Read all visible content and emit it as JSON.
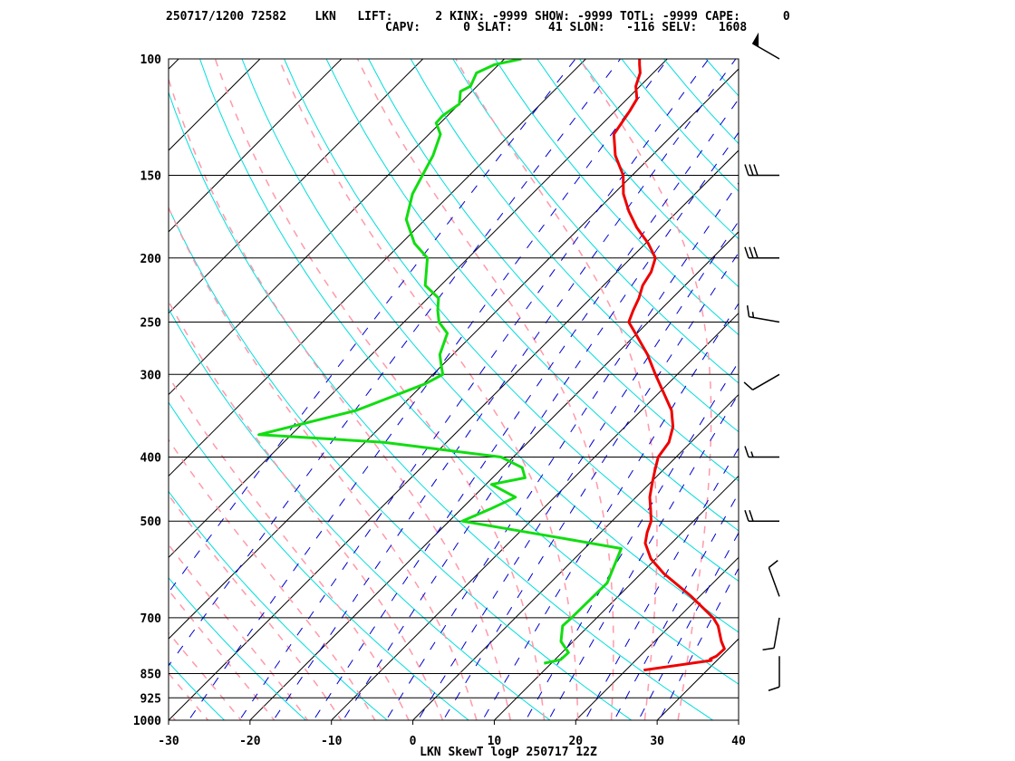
{
  "header": {
    "line1": "250717/1200 72582    LKN   LIFT:      2 KINX: -9999 SHOW: -9999 TOTL: -9999 CAPE:      0",
    "line2": "CAPV:      0 SLAT:     41 SLON:   -116 SELV:   1608"
  },
  "chart_data": {
    "type": "line",
    "title": "LKN SkewT logP 250717 12Z",
    "x_axis": {
      "ticks": [
        -30,
        -20,
        -10,
        0,
        10,
        20,
        30,
        40
      ],
      "range": [
        -30,
        40
      ]
    },
    "y_axis": {
      "scale": "log",
      "ticks": [
        100,
        150,
        200,
        250,
        300,
        400,
        500,
        700,
        850,
        925,
        1000
      ],
      "range": [
        1000,
        100
      ]
    },
    "series": [
      {
        "color": "#ee0000",
        "points": [
          [
            840,
            22.2
          ],
          [
            812,
            29.3
          ],
          [
            808,
            29.0
          ],
          [
            800,
            29.4
          ],
          [
            780,
            29.5
          ],
          [
            760,
            28.2
          ],
          [
            720,
            25.9
          ],
          [
            700,
            24.3
          ],
          [
            650,
            19.0
          ],
          [
            600,
            12.8
          ],
          [
            570,
            9.4
          ],
          [
            540,
            6.8
          ],
          [
            520,
            5.7
          ],
          [
            500,
            4.8
          ],
          [
            480,
            3.3
          ],
          [
            460,
            1.7
          ],
          [
            440,
            0.4
          ],
          [
            420,
            -0.9
          ],
          [
            400,
            -2.2
          ],
          [
            380,
            -2.7
          ],
          [
            360,
            -4.1
          ],
          [
            340,
            -6.3
          ],
          [
            300,
            -12.7
          ],
          [
            280,
            -16.1
          ],
          [
            260,
            -20.2
          ],
          [
            250,
            -22.4
          ],
          [
            240,
            -23.3
          ],
          [
            230,
            -24.1
          ],
          [
            220,
            -25.2
          ],
          [
            210,
            -25.8
          ],
          [
            200,
            -27.0
          ],
          [
            190,
            -29.7
          ],
          [
            180,
            -33.0
          ],
          [
            170,
            -36.0
          ],
          [
            160,
            -38.8
          ],
          [
            150,
            -41.1
          ],
          [
            140,
            -44.5
          ],
          [
            130,
            -47.3
          ],
          [
            120,
            -48.2
          ],
          [
            115,
            -48.8
          ],
          [
            110,
            -50.5
          ],
          [
            105,
            -51.6
          ],
          [
            102,
            -52.7
          ],
          [
            100,
            -53.4
          ]
        ]
      },
      {
        "color": "#11dd11",
        "points": [
          [
            820,
            9.1
          ],
          [
            810,
            10.7
          ],
          [
            790,
            10.8
          ],
          [
            760,
            8.5
          ],
          [
            720,
            6.8
          ],
          [
            700,
            6.9
          ],
          [
            620,
            7.0
          ],
          [
            550,
            4.5
          ],
          [
            530,
            -4.3
          ],
          [
            500,
            -18.4
          ],
          [
            480,
            -16.5
          ],
          [
            460,
            -14.8
          ],
          [
            440,
            -19.3
          ],
          [
            430,
            -16.0
          ],
          [
            415,
            -17.6
          ],
          [
            400,
            -21.5
          ],
          [
            380,
            -37.7
          ],
          [
            370,
            -54.0
          ],
          [
            340,
            -45.0
          ],
          [
            310,
            -39.8
          ],
          [
            300,
            -38.8
          ],
          [
            290,
            -40.2
          ],
          [
            280,
            -41.6
          ],
          [
            260,
            -43.3
          ],
          [
            250,
            -45.7
          ],
          [
            240,
            -47.3
          ],
          [
            230,
            -48.7
          ],
          [
            220,
            -51.9
          ],
          [
            200,
            -55.0
          ],
          [
            190,
            -58.4
          ],
          [
            175,
            -62.3
          ],
          [
            160,
            -64.7
          ],
          [
            140,
            -66.9
          ],
          [
            130,
            -68.6
          ],
          [
            125,
            -70.5
          ],
          [
            122,
            -70.6
          ],
          [
            117,
            -70.0
          ],
          [
            112,
            -71.4
          ],
          [
            110,
            -70.8
          ],
          [
            105,
            -71.7
          ],
          [
            102,
            -70.5
          ],
          [
            100,
            -67.9
          ]
        ]
      }
    ],
    "wind_barbs": [
      {
        "p": 100,
        "dir": 300,
        "spd": 50
      },
      {
        "p": 150,
        "dir": 270,
        "spd": 30
      },
      {
        "p": 200,
        "dir": 270,
        "spd": 30
      },
      {
        "p": 250,
        "dir": 280,
        "spd": 15
      },
      {
        "p": 300,
        "dir": 240,
        "spd": 10
      },
      {
        "p": 400,
        "dir": 270,
        "spd": 15
      },
      {
        "p": 500,
        "dir": 270,
        "spd": 20
      },
      {
        "p": 650,
        "dir": 340,
        "spd": 10
      },
      {
        "p": 700,
        "dir": 190,
        "spd": 10
      },
      {
        "p": 800,
        "dir": 180,
        "spd": 10
      }
    ],
    "colors": {
      "isotherm": "#000000",
      "dry_adiabat": "#00dddd",
      "moist_adiabat": "#ff99aa",
      "mixing_ratio": "#0000cc",
      "temperature": "#ee0000",
      "dewpoint": "#11dd11"
    }
  }
}
